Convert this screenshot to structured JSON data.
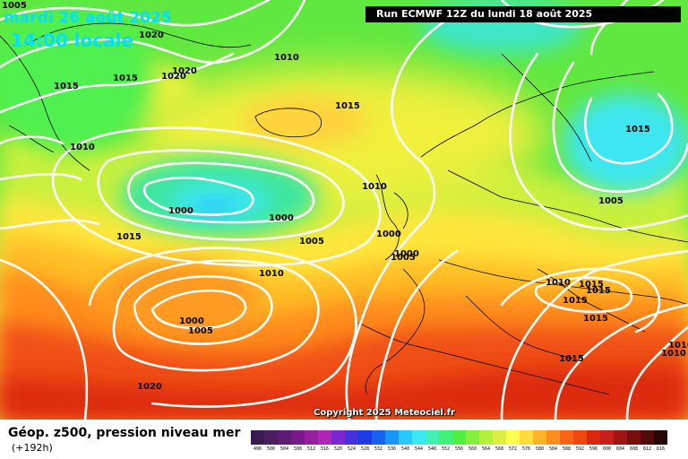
{
  "header": {
    "date": "mardi 26 août 2025",
    "time": "14:00 locale",
    "run": "Run ECMWF 12Z du lundi 18 août 2025"
  },
  "copyright": "Copyright 2025 Meteociel.fr",
  "legend": {
    "title": "Géop. z500, pression niveau mer",
    "subtitle": "(+192h)",
    "scale": [
      {
        "v": "496",
        "c": "#3a1850"
      },
      {
        "v": "500",
        "c": "#4a1e60"
      },
      {
        "v": "504",
        "c": "#5e1a74"
      },
      {
        "v": "508",
        "c": "#7a1a8a"
      },
      {
        "v": "512",
        "c": "#951f9e"
      },
      {
        "v": "516",
        "c": "#b024b8"
      },
      {
        "v": "520",
        "c": "#7a28d0"
      },
      {
        "v": "524",
        "c": "#4632dc"
      },
      {
        "v": "528",
        "c": "#1e3ce6"
      },
      {
        "v": "532",
        "c": "#1464f0"
      },
      {
        "v": "536",
        "c": "#1896f8"
      },
      {
        "v": "540",
        "c": "#28c8ff"
      },
      {
        "v": "544",
        "c": "#3ce6f0"
      },
      {
        "v": "548",
        "c": "#40f0b4"
      },
      {
        "v": "552",
        "c": "#40f078"
      },
      {
        "v": "556",
        "c": "#50f040"
      },
      {
        "v": "560",
        "c": "#82f03c"
      },
      {
        "v": "564",
        "c": "#b4f03c"
      },
      {
        "v": "568",
        "c": "#dcf046"
      },
      {
        "v": "572",
        "c": "#ffff50"
      },
      {
        "v": "576",
        "c": "#ffdc3c"
      },
      {
        "v": "580",
        "c": "#ffb428"
      },
      {
        "v": "584",
        "c": "#ff8c1e"
      },
      {
        "v": "588",
        "c": "#ff6414"
      },
      {
        "v": "592",
        "c": "#f0460f"
      },
      {
        "v": "596",
        "c": "#dc280a"
      },
      {
        "v": "600",
        "c": "#c81e1e"
      },
      {
        "v": "604",
        "c": "#a01414"
      },
      {
        "v": "608",
        "c": "#780f0f"
      },
      {
        "v": "612",
        "c": "#500a0a"
      },
      {
        "v": "616",
        "c": "#280505"
      }
    ]
  },
  "pressure_labels": [
    "1005",
    "1020",
    "1010",
    "1015",
    "1020",
    "1015",
    "1020",
    "1015",
    "1010",
    "1000",
    "1000",
    "1010",
    "1015",
    "1005",
    "1015",
    "1000",
    "1005",
    "1010",
    "1000",
    "1005",
    "1020",
    "1000",
    "1005",
    "1010",
    "1015",
    "1015",
    "1015",
    "1015",
    "1010",
    "1015",
    "1010"
  ]
}
